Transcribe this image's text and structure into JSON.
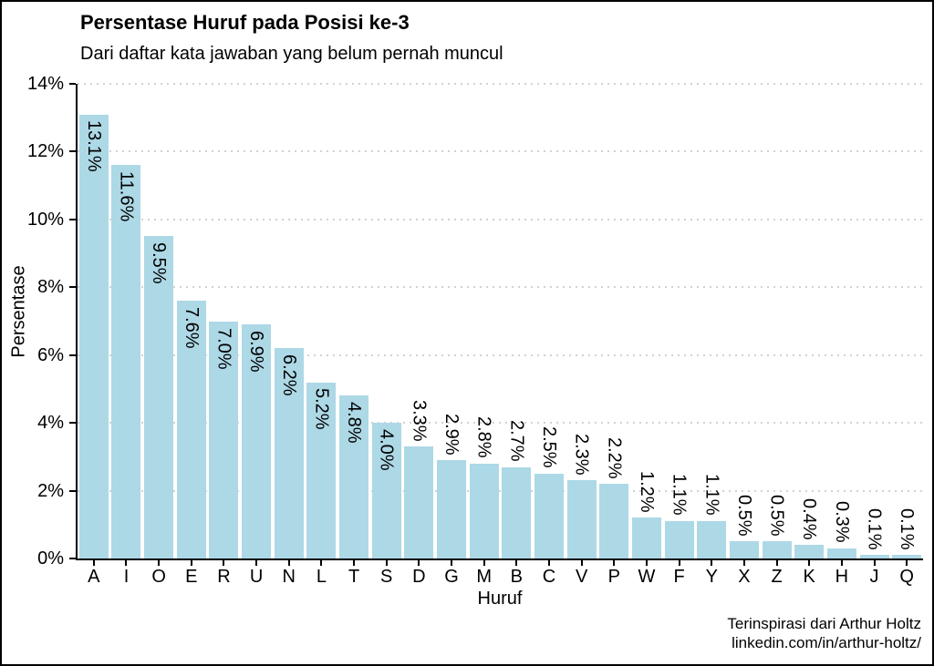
{
  "chart_data": {
    "type": "bar",
    "title": "Persentase Huruf pada Posisi ke-3",
    "subtitle": "Dari daftar kata jawaban yang belum pernah muncul",
    "xlabel": "Huruf",
    "ylabel": "Persentase",
    "categories": [
      "A",
      "I",
      "O",
      "E",
      "R",
      "U",
      "N",
      "L",
      "T",
      "S",
      "D",
      "G",
      "M",
      "B",
      "C",
      "V",
      "P",
      "W",
      "F",
      "Y",
      "X",
      "Z",
      "K",
      "H",
      "J",
      "Q"
    ],
    "values": [
      13.1,
      11.6,
      9.5,
      7.6,
      7.0,
      6.9,
      6.2,
      5.2,
      4.8,
      4.0,
      3.3,
      2.9,
      2.8,
      2.7,
      2.5,
      2.3,
      2.2,
      1.2,
      1.1,
      1.1,
      0.5,
      0.5,
      0.4,
      0.3,
      0.1,
      0.1
    ],
    "bar_labels": [
      "13.1%",
      "11.6%",
      "9.5%",
      "7.6%",
      "7.0%",
      "6.9%",
      "6.2%",
      "5.2%",
      "4.8%",
      "4.0%",
      "3.3%",
      "2.9%",
      "2.8%",
      "2.7%",
      "2.5%",
      "2.3%",
      "2.2%",
      "1.2%",
      "1.1%",
      "1.1%",
      "0.5%",
      "0.5%",
      "0.4%",
      "0.3%",
      "0.1%",
      "0.1%"
    ],
    "ylim": [
      0,
      14
    ],
    "ytick_values": [
      0,
      2,
      4,
      6,
      8,
      10,
      12,
      14
    ],
    "ytick_labels": [
      "0%",
      "2%",
      "4%",
      "6%",
      "8%",
      "10%",
      "12%",
      "14%"
    ],
    "grid": "horizontal-dotted",
    "legend": "none",
    "bar_color": "#ADD8E6",
    "grid_color": "#d2d2d2",
    "label_inside_min": 4.0
  },
  "caption": {
    "line1": "Terinspirasi dari Arthur Holtz",
    "line2": "linkedin.com/in/arthur-holtz/"
  }
}
